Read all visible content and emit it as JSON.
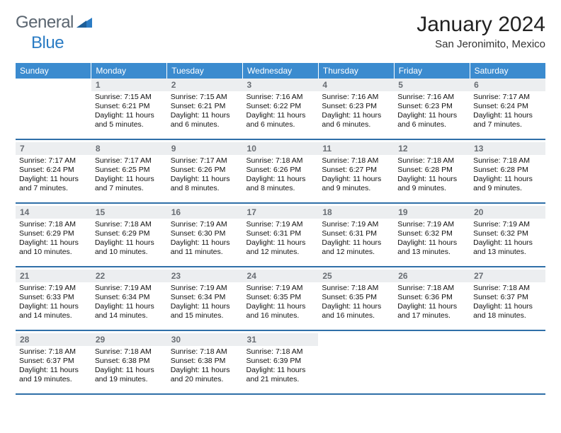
{
  "logo": {
    "text1": "General",
    "text2": "Blue"
  },
  "title": "January 2024",
  "location": "San Jeronimito, Mexico",
  "headers": [
    "Sunday",
    "Monday",
    "Tuesday",
    "Wednesday",
    "Thursday",
    "Friday",
    "Saturday"
  ],
  "colors": {
    "header_bg": "#3b8bcf",
    "header_text": "#ffffff",
    "daynum_bg": "#eceef0",
    "daynum_text": "#696e74",
    "rule": "#2f6fa8",
    "logo_gray": "#5a6570",
    "logo_blue": "#2b7cc4"
  },
  "weeks": [
    [
      {
        "n": "",
        "sr": "",
        "ss": "",
        "dl": ""
      },
      {
        "n": "1",
        "sr": "Sunrise: 7:15 AM",
        "ss": "Sunset: 6:21 PM",
        "dl": "Daylight: 11 hours and 5 minutes."
      },
      {
        "n": "2",
        "sr": "Sunrise: 7:15 AM",
        "ss": "Sunset: 6:21 PM",
        "dl": "Daylight: 11 hours and 6 minutes."
      },
      {
        "n": "3",
        "sr": "Sunrise: 7:16 AM",
        "ss": "Sunset: 6:22 PM",
        "dl": "Daylight: 11 hours and 6 minutes."
      },
      {
        "n": "4",
        "sr": "Sunrise: 7:16 AM",
        "ss": "Sunset: 6:23 PM",
        "dl": "Daylight: 11 hours and 6 minutes."
      },
      {
        "n": "5",
        "sr": "Sunrise: 7:16 AM",
        "ss": "Sunset: 6:23 PM",
        "dl": "Daylight: 11 hours and 6 minutes."
      },
      {
        "n": "6",
        "sr": "Sunrise: 7:17 AM",
        "ss": "Sunset: 6:24 PM",
        "dl": "Daylight: 11 hours and 7 minutes."
      }
    ],
    [
      {
        "n": "7",
        "sr": "Sunrise: 7:17 AM",
        "ss": "Sunset: 6:24 PM",
        "dl": "Daylight: 11 hours and 7 minutes."
      },
      {
        "n": "8",
        "sr": "Sunrise: 7:17 AM",
        "ss": "Sunset: 6:25 PM",
        "dl": "Daylight: 11 hours and 7 minutes."
      },
      {
        "n": "9",
        "sr": "Sunrise: 7:17 AM",
        "ss": "Sunset: 6:26 PM",
        "dl": "Daylight: 11 hours and 8 minutes."
      },
      {
        "n": "10",
        "sr": "Sunrise: 7:18 AM",
        "ss": "Sunset: 6:26 PM",
        "dl": "Daylight: 11 hours and 8 minutes."
      },
      {
        "n": "11",
        "sr": "Sunrise: 7:18 AM",
        "ss": "Sunset: 6:27 PM",
        "dl": "Daylight: 11 hours and 9 minutes."
      },
      {
        "n": "12",
        "sr": "Sunrise: 7:18 AM",
        "ss": "Sunset: 6:28 PM",
        "dl": "Daylight: 11 hours and 9 minutes."
      },
      {
        "n": "13",
        "sr": "Sunrise: 7:18 AM",
        "ss": "Sunset: 6:28 PM",
        "dl": "Daylight: 11 hours and 9 minutes."
      }
    ],
    [
      {
        "n": "14",
        "sr": "Sunrise: 7:18 AM",
        "ss": "Sunset: 6:29 PM",
        "dl": "Daylight: 11 hours and 10 minutes."
      },
      {
        "n": "15",
        "sr": "Sunrise: 7:18 AM",
        "ss": "Sunset: 6:29 PM",
        "dl": "Daylight: 11 hours and 10 minutes."
      },
      {
        "n": "16",
        "sr": "Sunrise: 7:19 AM",
        "ss": "Sunset: 6:30 PM",
        "dl": "Daylight: 11 hours and 11 minutes."
      },
      {
        "n": "17",
        "sr": "Sunrise: 7:19 AM",
        "ss": "Sunset: 6:31 PM",
        "dl": "Daylight: 11 hours and 12 minutes."
      },
      {
        "n": "18",
        "sr": "Sunrise: 7:19 AM",
        "ss": "Sunset: 6:31 PM",
        "dl": "Daylight: 11 hours and 12 minutes."
      },
      {
        "n": "19",
        "sr": "Sunrise: 7:19 AM",
        "ss": "Sunset: 6:32 PM",
        "dl": "Daylight: 11 hours and 13 minutes."
      },
      {
        "n": "20",
        "sr": "Sunrise: 7:19 AM",
        "ss": "Sunset: 6:32 PM",
        "dl": "Daylight: 11 hours and 13 minutes."
      }
    ],
    [
      {
        "n": "21",
        "sr": "Sunrise: 7:19 AM",
        "ss": "Sunset: 6:33 PM",
        "dl": "Daylight: 11 hours and 14 minutes."
      },
      {
        "n": "22",
        "sr": "Sunrise: 7:19 AM",
        "ss": "Sunset: 6:34 PM",
        "dl": "Daylight: 11 hours and 14 minutes."
      },
      {
        "n": "23",
        "sr": "Sunrise: 7:19 AM",
        "ss": "Sunset: 6:34 PM",
        "dl": "Daylight: 11 hours and 15 minutes."
      },
      {
        "n": "24",
        "sr": "Sunrise: 7:19 AM",
        "ss": "Sunset: 6:35 PM",
        "dl": "Daylight: 11 hours and 16 minutes."
      },
      {
        "n": "25",
        "sr": "Sunrise: 7:18 AM",
        "ss": "Sunset: 6:35 PM",
        "dl": "Daylight: 11 hours and 16 minutes."
      },
      {
        "n": "26",
        "sr": "Sunrise: 7:18 AM",
        "ss": "Sunset: 6:36 PM",
        "dl": "Daylight: 11 hours and 17 minutes."
      },
      {
        "n": "27",
        "sr": "Sunrise: 7:18 AM",
        "ss": "Sunset: 6:37 PM",
        "dl": "Daylight: 11 hours and 18 minutes."
      }
    ],
    [
      {
        "n": "28",
        "sr": "Sunrise: 7:18 AM",
        "ss": "Sunset: 6:37 PM",
        "dl": "Daylight: 11 hours and 19 minutes."
      },
      {
        "n": "29",
        "sr": "Sunrise: 7:18 AM",
        "ss": "Sunset: 6:38 PM",
        "dl": "Daylight: 11 hours and 19 minutes."
      },
      {
        "n": "30",
        "sr": "Sunrise: 7:18 AM",
        "ss": "Sunset: 6:38 PM",
        "dl": "Daylight: 11 hours and 20 minutes."
      },
      {
        "n": "31",
        "sr": "Sunrise: 7:18 AM",
        "ss": "Sunset: 6:39 PM",
        "dl": "Daylight: 11 hours and 21 minutes."
      },
      {
        "n": "",
        "sr": "",
        "ss": "",
        "dl": ""
      },
      {
        "n": "",
        "sr": "",
        "ss": "",
        "dl": ""
      },
      {
        "n": "",
        "sr": "",
        "ss": "",
        "dl": ""
      }
    ]
  ]
}
